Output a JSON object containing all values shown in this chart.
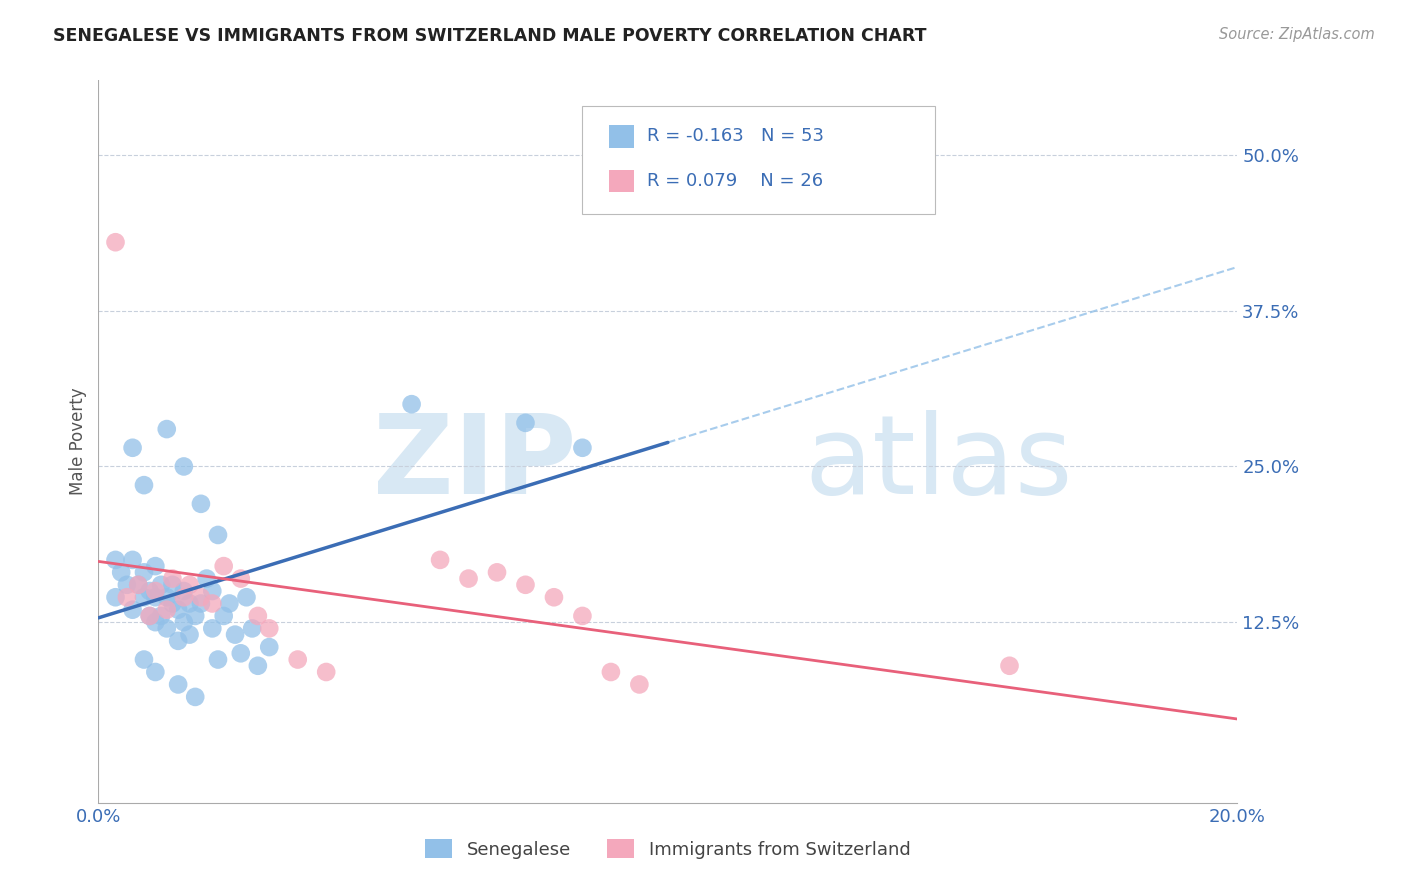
{
  "title": "SENEGALESE VS IMMIGRANTS FROM SWITZERLAND MALE POVERTY CORRELATION CHART",
  "source": "Source: ZipAtlas.com",
  "ylabel": "Male Poverty",
  "xlim": [
    0.0,
    0.2
  ],
  "ylim": [
    -0.02,
    0.56
  ],
  "xticks": [
    0.0,
    0.05,
    0.1,
    0.15,
    0.2
  ],
  "xticklabels": [
    "0.0%",
    "",
    "",
    "",
    "20.0%"
  ],
  "yticks": [
    0.0,
    0.125,
    0.25,
    0.375,
    0.5
  ],
  "yticklabels": [
    "",
    "12.5%",
    "25.0%",
    "37.5%",
    "50.0%"
  ],
  "blue_color": "#92C0E8",
  "pink_color": "#F4A8BC",
  "blue_line_color": "#3B6DB5",
  "pink_line_color": "#E8607A",
  "R_blue": -0.163,
  "N_blue": 53,
  "R_pink": 0.079,
  "N_pink": 26,
  "legend_labels": [
    "Senegalese",
    "Immigrants from Switzerland"
  ],
  "blue_scatter_x": [
    0.003,
    0.003,
    0.004,
    0.005,
    0.006,
    0.006,
    0.007,
    0.008,
    0.008,
    0.009,
    0.009,
    0.01,
    0.01,
    0.01,
    0.011,
    0.011,
    0.012,
    0.012,
    0.013,
    0.013,
    0.014,
    0.014,
    0.015,
    0.015,
    0.016,
    0.016,
    0.017,
    0.018,
    0.019,
    0.02,
    0.02,
    0.021,
    0.022,
    0.023,
    0.024,
    0.025,
    0.026,
    0.027,
    0.028,
    0.03,
    0.006,
    0.008,
    0.012,
    0.015,
    0.018,
    0.021,
    0.008,
    0.01,
    0.014,
    0.017,
    0.055,
    0.075,
    0.085
  ],
  "blue_scatter_y": [
    0.175,
    0.145,
    0.165,
    0.155,
    0.175,
    0.135,
    0.155,
    0.145,
    0.165,
    0.13,
    0.15,
    0.17,
    0.145,
    0.125,
    0.155,
    0.13,
    0.145,
    0.12,
    0.155,
    0.14,
    0.135,
    0.11,
    0.15,
    0.125,
    0.14,
    0.115,
    0.13,
    0.14,
    0.16,
    0.12,
    0.15,
    0.095,
    0.13,
    0.14,
    0.115,
    0.1,
    0.145,
    0.12,
    0.09,
    0.105,
    0.265,
    0.235,
    0.28,
    0.25,
    0.22,
    0.195,
    0.095,
    0.085,
    0.075,
    0.065,
    0.3,
    0.285,
    0.265
  ],
  "pink_scatter_x": [
    0.003,
    0.005,
    0.007,
    0.009,
    0.01,
    0.012,
    0.013,
    0.015,
    0.016,
    0.018,
    0.02,
    0.022,
    0.025,
    0.028,
    0.03,
    0.035,
    0.04,
    0.06,
    0.065,
    0.07,
    0.075,
    0.08,
    0.085,
    0.09,
    0.095,
    0.16
  ],
  "pink_scatter_y": [
    0.43,
    0.145,
    0.155,
    0.13,
    0.15,
    0.135,
    0.16,
    0.145,
    0.155,
    0.145,
    0.14,
    0.17,
    0.16,
    0.13,
    0.12,
    0.095,
    0.085,
    0.175,
    0.16,
    0.165,
    0.155,
    0.145,
    0.13,
    0.085,
    0.075,
    0.09
  ]
}
